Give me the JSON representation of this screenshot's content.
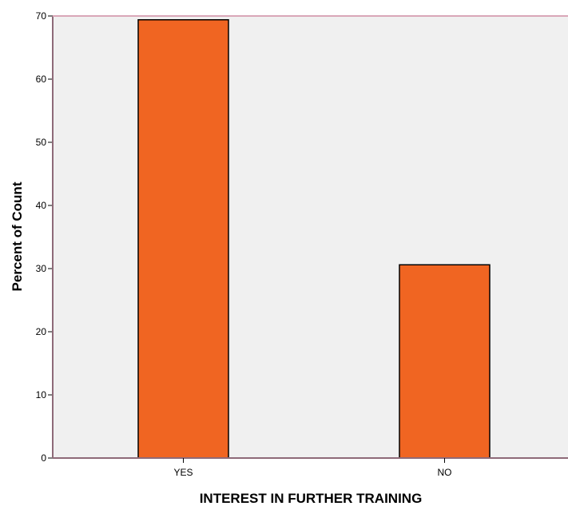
{
  "chart_data": {
    "type": "bar",
    "xlabel": "INTEREST IN FURTHER TRAINING",
    "ylabel": "Percent of Count",
    "categories": [
      "YES",
      "NO"
    ],
    "values": [
      69.4,
      30.6
    ],
    "ylim": [
      0,
      70
    ],
    "yticks": [
      0,
      10,
      20,
      30,
      40,
      50,
      60,
      70
    ],
    "grid": false,
    "legend": "none"
  },
  "colors": {
    "plot_background": "#f0f0f0",
    "bar_fill": "#f06522",
    "bar_stroke": "#000000",
    "frame": "#d9a7b8",
    "axis": "#8e6a78"
  }
}
